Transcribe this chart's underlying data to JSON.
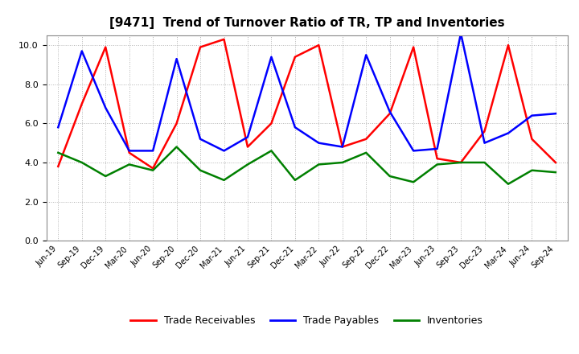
{
  "title": "[9471]  Trend of Turnover Ratio of TR, TP and Inventories",
  "x_labels": [
    "Jun-19",
    "Sep-19",
    "Dec-19",
    "Mar-20",
    "Jun-20",
    "Sep-20",
    "Dec-20",
    "Mar-21",
    "Jun-21",
    "Sep-21",
    "Dec-21",
    "Mar-22",
    "Jun-22",
    "Sep-22",
    "Dec-22",
    "Mar-23",
    "Jun-23",
    "Sep-23",
    "Dec-23",
    "Mar-24",
    "Jun-24",
    "Sep-24"
  ],
  "trade_receivables": [
    3.8,
    7.0,
    9.9,
    4.5,
    3.7,
    6.0,
    9.9,
    10.3,
    4.8,
    6.0,
    9.4,
    10.0,
    4.8,
    5.2,
    6.5,
    9.9,
    4.2,
    4.0,
    5.6,
    10.0,
    5.2,
    4.0
  ],
  "trade_payables": [
    5.8,
    9.7,
    6.8,
    4.6,
    4.6,
    9.3,
    5.2,
    4.6,
    5.3,
    9.4,
    5.8,
    5.0,
    4.8,
    9.5,
    6.6,
    4.6,
    4.7,
    10.6,
    5.0,
    5.5,
    6.4,
    6.5
  ],
  "inventories": [
    4.5,
    4.0,
    3.3,
    3.9,
    3.6,
    4.8,
    3.6,
    3.1,
    3.9,
    4.6,
    3.1,
    3.9,
    4.0,
    4.5,
    3.3,
    3.0,
    3.9,
    4.0,
    4.0,
    2.9,
    3.6,
    3.5
  ],
  "ylim": [
    0.0,
    10.5
  ],
  "yticks": [
    0.0,
    2.0,
    4.0,
    6.0,
    8.0,
    10.0
  ],
  "color_tr": "#ff0000",
  "color_tp": "#0000ff",
  "color_inv": "#008000",
  "legend_labels": [
    "Trade Receivables",
    "Trade Payables",
    "Inventories"
  ],
  "background_color": "#ffffff",
  "plot_bg_color": "#ffffff",
  "grid_color": "#aaaaaa",
  "title_fontsize": 11,
  "linewidth": 1.8
}
